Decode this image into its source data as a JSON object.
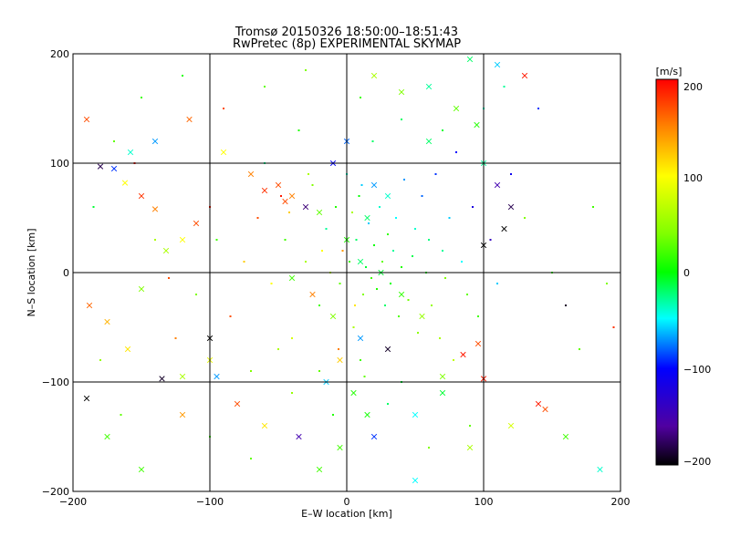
{
  "chart_data": {
    "type": "scatter",
    "title": "Tromsø 20150326 18:50:00–18:51:43",
    "subtitle": "RwPretec (8p) EXPERIMENTAL SKYMAP",
    "xlabel": "E–W location [km]",
    "ylabel": "N–S location [km]",
    "xlim": [
      -200,
      200
    ],
    "ylim": [
      -200,
      200
    ],
    "x_ticks": [
      "−200",
      "−100",
      "0",
      "100",
      "200"
    ],
    "y_ticks": [
      "−200",
      "−100",
      "0",
      "100",
      "200"
    ],
    "grid": true,
    "colorbar": {
      "unit": "[m/s]",
      "range": [
        -200,
        200
      ],
      "ticks": [
        "200",
        "100",
        "0",
        "−100",
        "−200"
      ]
    },
    "series": [
      {
        "marker": "x",
        "points": [
          [
            -190,
            140,
            170
          ],
          [
            -180,
            97,
            -180
          ],
          [
            -170,
            95,
            -90
          ],
          [
            -162,
            82,
            100
          ],
          [
            -158,
            110,
            -40
          ],
          [
            -150,
            70,
            180
          ],
          [
            -140,
            58,
            150
          ],
          [
            -132,
            20,
            60
          ],
          [
            -120,
            30,
            100
          ],
          [
            -110,
            45,
            170
          ],
          [
            -188,
            -30,
            160
          ],
          [
            -175,
            -45,
            130
          ],
          [
            -160,
            -70,
            110
          ],
          [
            -150,
            -15,
            40
          ],
          [
            -135,
            -97,
            -190
          ],
          [
            -120,
            -95,
            60
          ],
          [
            -100,
            -60,
            -200
          ],
          [
            -95,
            -95,
            -70
          ],
          [
            -190,
            -115,
            -200
          ],
          [
            -175,
            -150,
            20
          ],
          [
            -150,
            -180,
            20
          ],
          [
            -120,
            -130,
            140
          ],
          [
            -100,
            -80,
            90
          ],
          [
            -80,
            -120,
            170
          ],
          [
            -60,
            -140,
            110
          ],
          [
            -140,
            120,
            -70
          ],
          [
            -115,
            140,
            160
          ],
          [
            -90,
            110,
            100
          ],
          [
            -70,
            90,
            150
          ],
          [
            -60,
            75,
            180
          ],
          [
            -50,
            80,
            170
          ],
          [
            -45,
            65,
            170
          ],
          [
            -40,
            70,
            150
          ],
          [
            -30,
            60,
            -170
          ],
          [
            -20,
            55,
            30
          ],
          [
            -35,
            -150,
            -150
          ],
          [
            -20,
            -180,
            20
          ],
          [
            20,
            -150,
            -90
          ],
          [
            50,
            -130,
            -50
          ],
          [
            70,
            -110,
            -10
          ],
          [
            30,
            -70,
            -190
          ],
          [
            10,
            -60,
            -70
          ],
          [
            -10,
            -40,
            40
          ],
          [
            -25,
            -20,
            150
          ],
          [
            -40,
            -5,
            20
          ],
          [
            60,
            120,
            -20
          ],
          [
            80,
            150,
            30
          ],
          [
            95,
            135,
            10
          ],
          [
            100,
            100,
            -30
          ],
          [
            110,
            80,
            -150
          ],
          [
            120,
            60,
            -180
          ],
          [
            100,
            25,
            -200
          ],
          [
            115,
            40,
            -200
          ],
          [
            96,
            -65,
            170
          ],
          [
            85,
            -75,
            190
          ],
          [
            70,
            -95,
            40
          ],
          [
            100,
            -97,
            190
          ],
          [
            120,
            -140,
            80
          ],
          [
            140,
            -120,
            190
          ],
          [
            145,
            -125,
            170
          ],
          [
            185,
            -180,
            -40
          ],
          [
            160,
            -150,
            20
          ],
          [
            130,
            180,
            190
          ],
          [
            110,
            190,
            -60
          ],
          [
            90,
            195,
            -20
          ],
          [
            60,
            170,
            -30
          ],
          [
            40,
            165,
            40
          ],
          [
            20,
            180,
            60
          ],
          [
            0,
            120,
            -80
          ],
          [
            -10,
            100,
            -100
          ],
          [
            20,
            80,
            -70
          ],
          [
            30,
            70,
            -40
          ],
          [
            15,
            50,
            -20
          ],
          [
            0,
            30,
            10
          ],
          [
            10,
            10,
            -20
          ],
          [
            25,
            0,
            -10
          ],
          [
            40,
            -20,
            15
          ],
          [
            55,
            -40,
            50
          ],
          [
            -5,
            -80,
            120
          ],
          [
            -15,
            -100,
            -60
          ],
          [
            5,
            -110,
            10
          ],
          [
            15,
            -130,
            5
          ],
          [
            -5,
            -160,
            20
          ],
          [
            50,
            -190,
            -50
          ],
          [
            90,
            -160,
            60
          ]
        ]
      },
      {
        "marker": "dot",
        "points": [
          [
            -185,
            60,
            -10
          ],
          [
            -170,
            120,
            30
          ],
          [
            -155,
            100,
            190
          ],
          [
            -140,
            30,
            60
          ],
          [
            -130,
            -5,
            170
          ],
          [
            -125,
            -60,
            150
          ],
          [
            -110,
            -20,
            40
          ],
          [
            -100,
            60,
            190
          ],
          [
            -95,
            30,
            20
          ],
          [
            -85,
            -40,
            170
          ],
          [
            -75,
            10,
            120
          ],
          [
            -70,
            -90,
            40
          ],
          [
            -60,
            100,
            -30
          ],
          [
            -55,
            -10,
            100
          ],
          [
            -45,
            30,
            20
          ],
          [
            -40,
            -60,
            80
          ],
          [
            -35,
            130,
            10
          ],
          [
            -30,
            10,
            60
          ],
          [
            -25,
            80,
            40
          ],
          [
            -20,
            -30,
            20
          ],
          [
            -15,
            40,
            -30
          ],
          [
            -12,
            0,
            70
          ],
          [
            -8,
            60,
            10
          ],
          [
            -5,
            -10,
            30
          ],
          [
            -3,
            20,
            140
          ],
          [
            0,
            90,
            -40
          ],
          [
            2,
            10,
            20
          ],
          [
            5,
            -50,
            60
          ],
          [
            7,
            30,
            -20
          ],
          [
            9,
            70,
            0
          ],
          [
            12,
            -20,
            40
          ],
          [
            14,
            5,
            -10
          ],
          [
            16,
            45,
            -60
          ],
          [
            18,
            -5,
            20
          ],
          [
            20,
            25,
            0
          ],
          [
            22,
            -15,
            10
          ],
          [
            24,
            60,
            -40
          ],
          [
            26,
            10,
            30
          ],
          [
            28,
            -30,
            -20
          ],
          [
            30,
            35,
            15
          ],
          [
            32,
            -10,
            0
          ],
          [
            34,
            20,
            -30
          ],
          [
            36,
            50,
            -50
          ],
          [
            38,
            -40,
            25
          ],
          [
            40,
            5,
            10
          ],
          [
            42,
            85,
            -70
          ],
          [
            45,
            -25,
            35
          ],
          [
            48,
            15,
            -15
          ],
          [
            50,
            40,
            -40
          ],
          [
            52,
            -55,
            45
          ],
          [
            55,
            70,
            -80
          ],
          [
            58,
            0,
            5
          ],
          [
            60,
            30,
            -25
          ],
          [
            62,
            -30,
            50
          ],
          [
            65,
            90,
            -90
          ],
          [
            68,
            -60,
            60
          ],
          [
            70,
            20,
            -30
          ],
          [
            72,
            -5,
            40
          ],
          [
            75,
            50,
            -60
          ],
          [
            78,
            -80,
            70
          ],
          [
            80,
            110,
            -100
          ],
          [
            84,
            10,
            -50
          ],
          [
            88,
            -20,
            30
          ],
          [
            92,
            60,
            -120
          ],
          [
            96,
            -40,
            20
          ],
          [
            100,
            150,
            -40
          ],
          [
            105,
            30,
            -140
          ],
          [
            110,
            -10,
            -60
          ],
          [
            115,
            170,
            -30
          ],
          [
            120,
            90,
            -110
          ],
          [
            130,
            50,
            40
          ],
          [
            140,
            150,
            -90
          ],
          [
            150,
            0,
            20
          ],
          [
            160,
            -30,
            -190
          ],
          [
            170,
            -70,
            30
          ],
          [
            180,
            60,
            20
          ],
          [
            190,
            -10,
            40
          ],
          [
            195,
            -50,
            180
          ],
          [
            -180,
            -80,
            50
          ],
          [
            -165,
            -130,
            30
          ],
          [
            -150,
            160,
            20
          ],
          [
            -120,
            180,
            10
          ],
          [
            -90,
            150,
            170
          ],
          [
            -60,
            170,
            30
          ],
          [
            -30,
            185,
            40
          ],
          [
            10,
            160,
            20
          ],
          [
            40,
            140,
            -20
          ],
          [
            70,
            130,
            -10
          ],
          [
            -100,
            -150,
            20
          ],
          [
            -70,
            -170,
            30
          ],
          [
            -40,
            -110,
            50
          ],
          [
            -10,
            -130,
            10
          ],
          [
            30,
            -120,
            -20
          ],
          [
            60,
            -160,
            40
          ],
          [
            90,
            -140,
            30
          ],
          [
            -50,
            -70,
            60
          ],
          [
            -20,
            -90,
            30
          ],
          [
            10,
            -80,
            20
          ],
          [
            40,
            -100,
            -10
          ],
          [
            -65,
            50,
            170
          ],
          [
            -48,
            70,
            190
          ],
          [
            -42,
            55,
            120
          ],
          [
            -28,
            90,
            60
          ],
          [
            -18,
            20,
            100
          ],
          [
            -6,
            -70,
            150
          ],
          [
            4,
            55,
            60
          ],
          [
            6,
            -30,
            110
          ],
          [
            11,
            80,
            -60
          ],
          [
            13,
            -95,
            30
          ],
          [
            19,
            120,
            -20
          ]
        ]
      }
    ]
  }
}
